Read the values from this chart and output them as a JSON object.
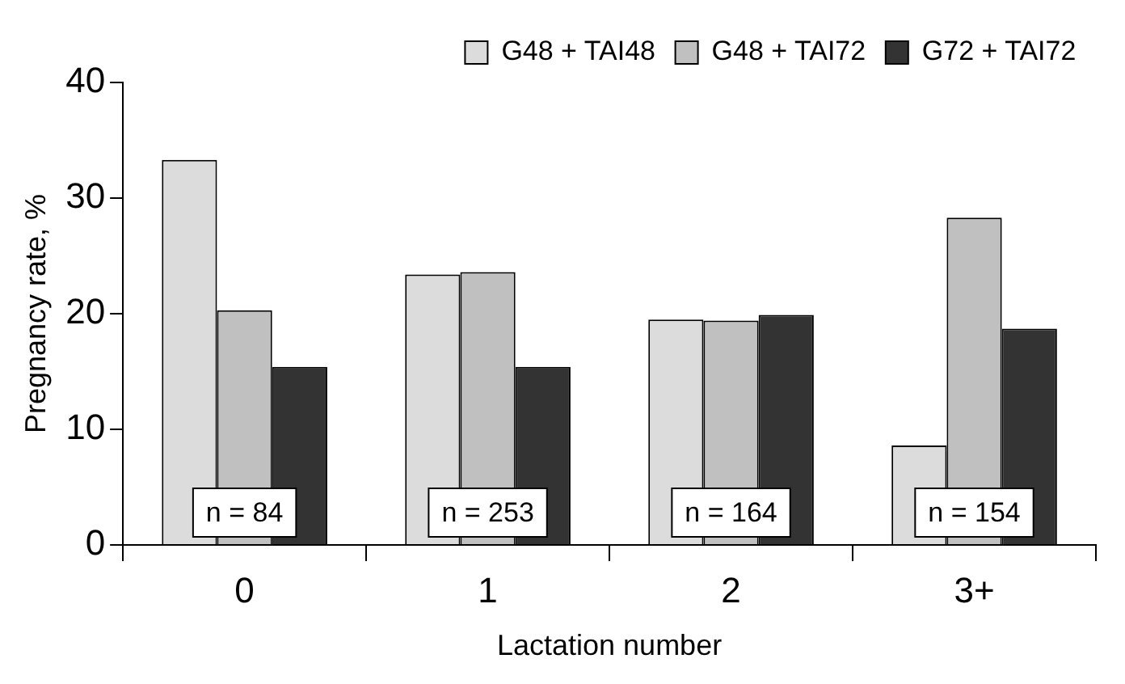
{
  "chart_data": {
    "type": "bar",
    "xlabel": "Lactation number",
    "ylabel": "Pregnancy rate, %",
    "categories": [
      "0",
      "1",
      "2",
      "3+"
    ],
    "series": [
      {
        "name": "G48 + TAI48",
        "color": "#dcdcdc",
        "values": [
          33.3,
          23.4,
          19.5,
          8.6
        ]
      },
      {
        "name": "G48 + TAI72",
        "color": "#c0c0c0",
        "values": [
          20.3,
          23.6,
          19.4,
          28.3
        ]
      },
      {
        "name": "G72 + TAI72",
        "color": "#333333",
        "values": [
          15.4,
          15.4,
          19.9,
          18.7
        ]
      }
    ],
    "ylim": [
      0,
      40
    ],
    "yticks": [
      0,
      10,
      20,
      30,
      40
    ],
    "grid": false,
    "legend": "top right",
    "annotations": [
      "n = 84",
      "n = 253",
      "n = 164",
      "n = 154"
    ]
  }
}
